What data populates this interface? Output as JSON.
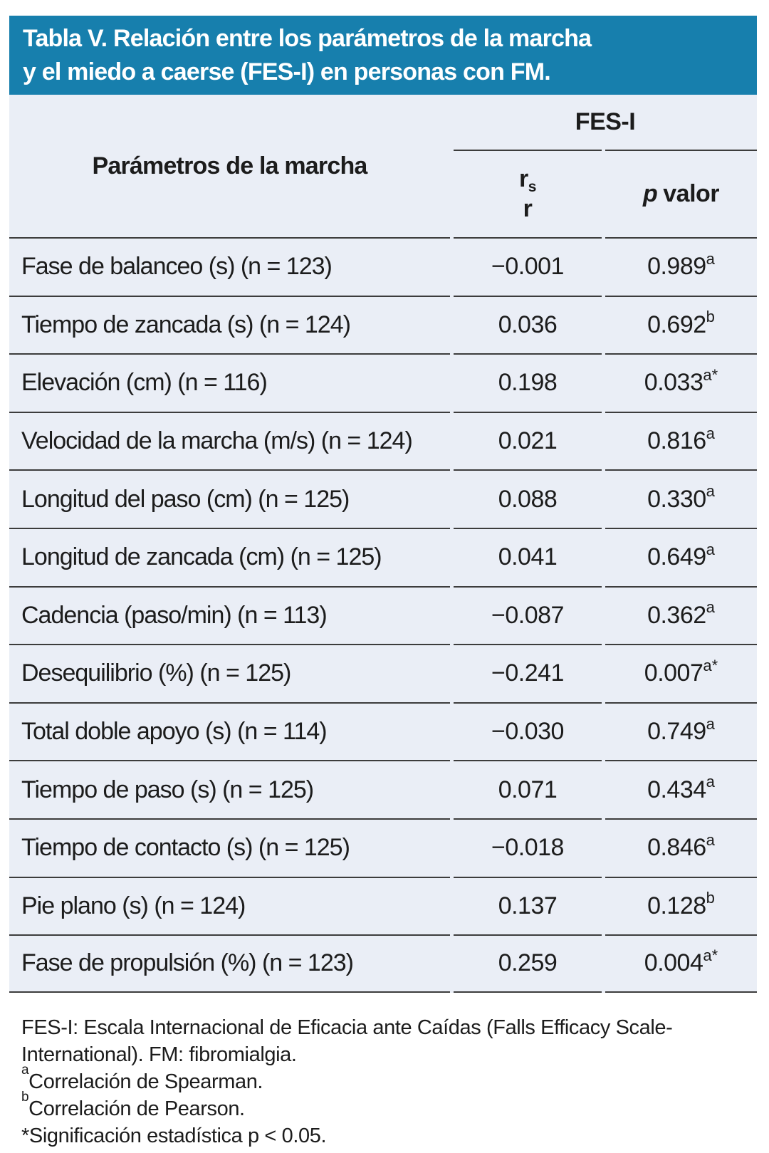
{
  "title": {
    "line1": "Tabla V. Relación entre los parámetros de la marcha",
    "line2": "y el miedo a caerse (FES-I) en personas con FM."
  },
  "table": {
    "param_header": "Parámetros de la marcha",
    "group_header": "FES-I",
    "stat_header": {
      "r_main": "r",
      "r_sub": "s",
      "r_second": "r"
    },
    "p_header": {
      "italic": "p",
      "rest": "valor"
    },
    "rows": [
      {
        "label": "Fase de balanceo (s) (n = 123)",
        "r": "−0.001",
        "p": "0.989",
        "p_sup": "a"
      },
      {
        "label": "Tiempo de zancada (s) (n = 124)",
        "r": "0.036",
        "p": "0.692",
        "p_sup": "b"
      },
      {
        "label": "Elevación (cm) (n = 116)",
        "r": "0.198",
        "p": "0.033",
        "p_sup": "a*"
      },
      {
        "label": "Velocidad de la marcha (m/s) (n = 124)",
        "r": "0.021",
        "p": "0.816",
        "p_sup": "a"
      },
      {
        "label": "Longitud del paso (cm) (n = 125)",
        "r": "0.088",
        "p": "0.330",
        "p_sup": "a"
      },
      {
        "label": "Longitud de zancada (cm) (n = 125)",
        "r": "0.041",
        "p": "0.649",
        "p_sup": "a"
      },
      {
        "label": "Cadencia (paso/min) (n = 113)",
        "r": "−0.087",
        "p": "0.362",
        "p_sup": "a"
      },
      {
        "label": "Desequilibrio (%) (n = 125)",
        "r": "−0.241",
        "p": "0.007",
        "p_sup": "a*"
      },
      {
        "label": "Total doble apoyo (s) (n = 114)",
        "r": "−0.030",
        "p": "0.749",
        "p_sup": "a"
      },
      {
        "label": "Tiempo de paso (s) (n = 125)",
        "r": "0.071",
        "p": "0.434",
        "p_sup": "a"
      },
      {
        "label": "Tiempo de contacto (s) (n = 125)",
        "r": "−0.018",
        "p": "0.846",
        "p_sup": "a"
      },
      {
        "label": "Pie plano (s) (n = 124)",
        "r": "0.137",
        "p": "0.128",
        "p_sup": "b"
      },
      {
        "label": "Fase de propulsión (%) (n = 123)",
        "r": "0.259",
        "p": "0.004",
        "p_sup": "a*"
      }
    ]
  },
  "footnotes": {
    "lines": [
      {
        "sup": "",
        "text": "FES-I: Escala Internacional de Eficacia ante Caídas (Falls Efficacy Scale-"
      },
      {
        "sup": "",
        "text": "International). FM: fibromialgia."
      },
      {
        "sup": "a",
        "text": "Correlación de Spearman."
      },
      {
        "sup": "b",
        "text": "Correlación de Pearson."
      },
      {
        "sup": "",
        "text": "*Significación estadística p < 0.05."
      }
    ]
  },
  "colors": {
    "teal": "#177FAD",
    "table_bg": "#EAEEF6",
    "rule": "#3C3C3C",
    "text": "#1C1C1C",
    "title_text": "#FFFFFF"
  }
}
